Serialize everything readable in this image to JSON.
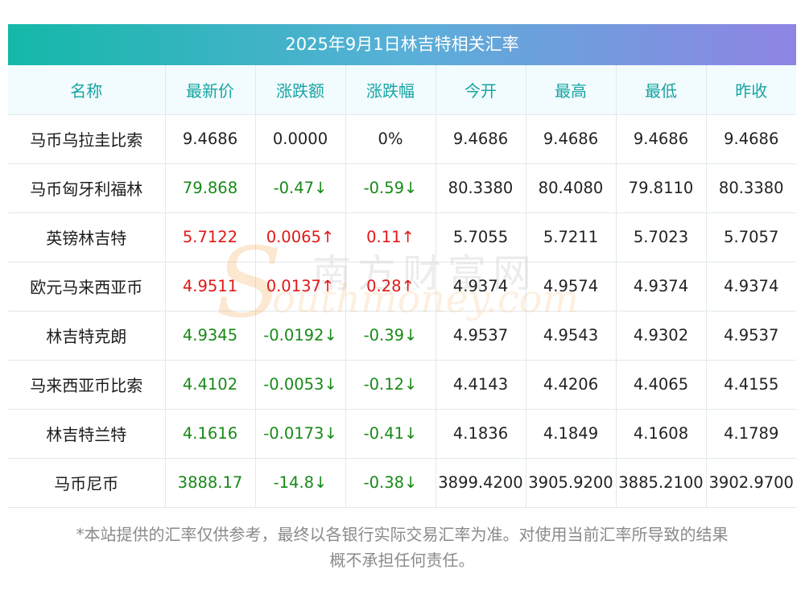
{
  "title": "2025年9月1日林吉特相关汇率",
  "headers": [
    "名称",
    "最新价",
    "涨跌额",
    "涨跌幅",
    "今开",
    "最高",
    "最低",
    "昨收"
  ],
  "rows": [
    {
      "name": "马币乌拉圭比索",
      "latest": "9.4686",
      "change": "0.0000",
      "pct": "0%",
      "open": "9.4686",
      "high": "9.4686",
      "low": "9.4686",
      "prev": "9.4686",
      "trend": "flat"
    },
    {
      "name": "马币匈牙利福林",
      "latest": "79.868",
      "change": "-0.47↓",
      "pct": "-0.59↓",
      "open": "80.3380",
      "high": "80.4080",
      "low": "79.8110",
      "prev": "80.3380",
      "trend": "down"
    },
    {
      "name": "英镑林吉特",
      "latest": "5.7122",
      "change": "0.0065↑",
      "pct": "0.11↑",
      "open": "5.7055",
      "high": "5.7211",
      "low": "5.7023",
      "prev": "5.7057",
      "trend": "up"
    },
    {
      "name": "欧元马来西亚币",
      "latest": "4.9511",
      "change": "0.0137↑",
      "pct": "0.28↑",
      "open": "4.9374",
      "high": "4.9574",
      "low": "4.9374",
      "prev": "4.9374",
      "trend": "up"
    },
    {
      "name": "林吉特克朗",
      "latest": "4.9345",
      "change": "-0.0192↓",
      "pct": "-0.39↓",
      "open": "4.9537",
      "high": "4.9543",
      "low": "4.9302",
      "prev": "4.9537",
      "trend": "down"
    },
    {
      "name": "马来西亚币比索",
      "latest": "4.4102",
      "change": "-0.0053↓",
      "pct": "-0.12↓",
      "open": "4.4143",
      "high": "4.4206",
      "low": "4.4065",
      "prev": "4.4155",
      "trend": "down"
    },
    {
      "name": "林吉特兰特",
      "latest": "4.1616",
      "change": "-0.0173↓",
      "pct": "-0.41↓",
      "open": "4.1836",
      "high": "4.1849",
      "low": "4.1608",
      "prev": "4.1789",
      "trend": "down"
    },
    {
      "name": "马币尼币",
      "latest": "3888.17",
      "change": "-14.8↓",
      "pct": "-0.38↓",
      "open": "3899.4200",
      "high": "3905.9200",
      "low": "3885.2100",
      "prev": "3902.9700",
      "trend": "down"
    }
  ],
  "note_line1": "*本站提供的汇率仅供参考，最终以各银行实际交易汇率为准。对使用当前汇率所导致的结果",
  "note_line2": "概不承担任何责任。",
  "watermark": {
    "cn": "南方财富网",
    "en": "outhmoney.com",
    "s": "S"
  },
  "colors": {
    "up": "#e01818",
    "down": "#178a17",
    "header_text": "#16a4a4",
    "title_start": "#14b8a8",
    "title_end": "#8f84e4"
  }
}
